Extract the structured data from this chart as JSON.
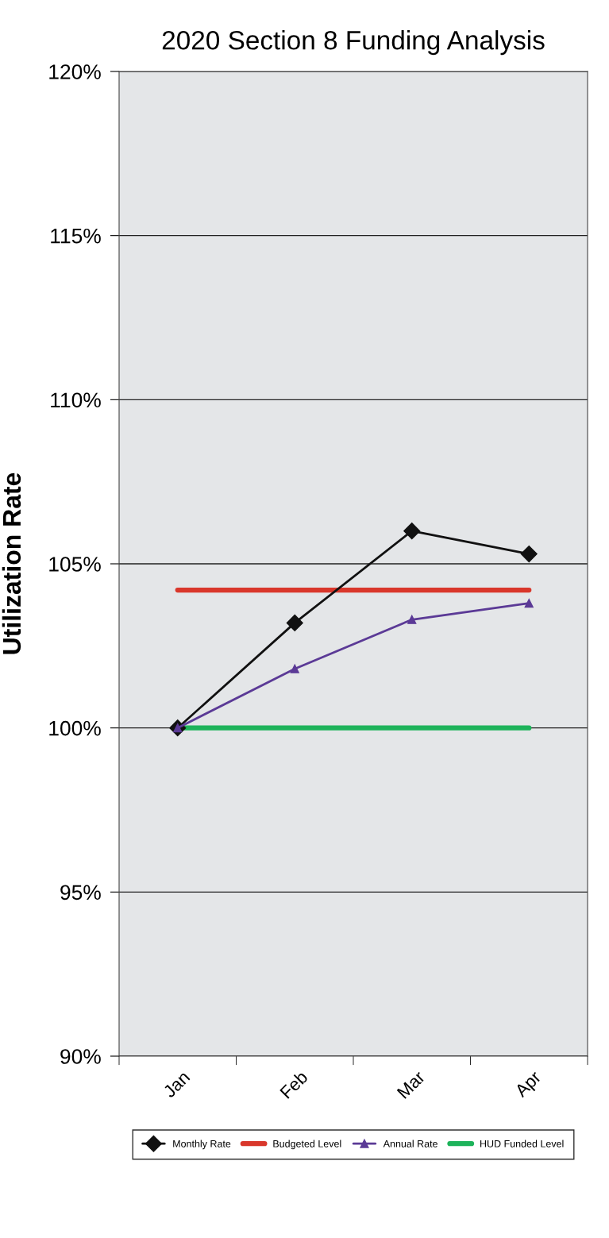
{
  "chart_data": {
    "type": "line",
    "title": "2020 Section 8 Funding Analysis",
    "ylabel": "Utilization Rate",
    "categories": [
      "Jan",
      "Feb",
      "Mar",
      "Apr"
    ],
    "series": [
      {
        "name": "Monthly Rate",
        "color": "#111111",
        "marker": "diamond",
        "values": [
          100,
          103.2,
          106,
          105.3
        ]
      },
      {
        "name": "Budgeted Level",
        "color": "#d9372b",
        "marker": "none",
        "values": [
          104.2,
          104.2,
          104.2,
          104.2
        ]
      },
      {
        "name": "Annual Rate",
        "color": "#5b3a96",
        "marker": "triangle",
        "values": [
          100,
          101.8,
          103.3,
          103.8
        ]
      },
      {
        "name": "HUD Funded Level",
        "color": "#1db35a",
        "marker": "none",
        "values": [
          100,
          100,
          100,
          100
        ]
      }
    ],
    "ylim": [
      90,
      120
    ],
    "yticks": [
      {
        "value": 90,
        "label": "90%"
      },
      {
        "value": 95,
        "label": "95%"
      },
      {
        "value": 100,
        "label": "100%"
      },
      {
        "value": 105,
        "label": "105%"
      },
      {
        "value": 110,
        "label": "110%"
      },
      {
        "value": 115,
        "label": "115%"
      },
      {
        "value": 120,
        "label": "120%"
      }
    ],
    "grid": "y",
    "legend": "bottom"
  }
}
